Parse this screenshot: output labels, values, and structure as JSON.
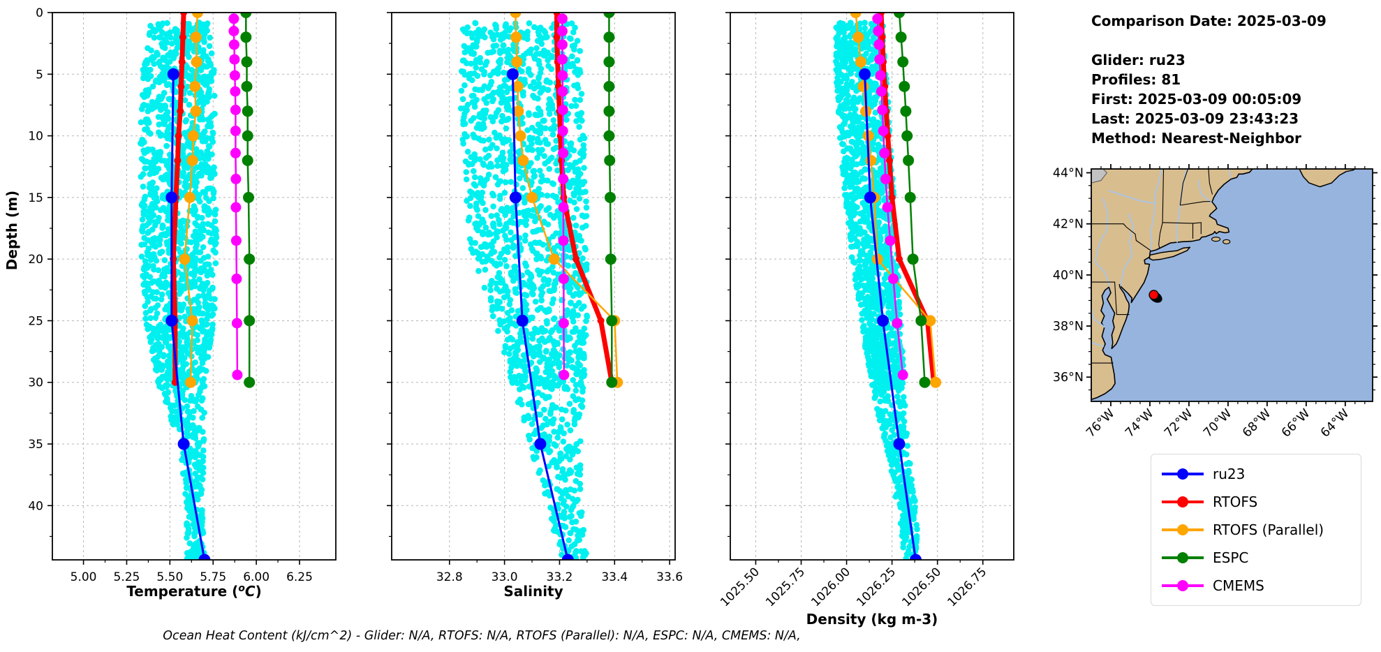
{
  "info_panel": {
    "comparison_date": "Comparison Date: 2025-03-09",
    "details": [
      "Glider: ru23",
      "Profiles: 81",
      "First: 2025-03-09 00:05:09",
      "Last: 2025-03-09 23:43:23",
      "Method: Nearest-Neighbor"
    ]
  },
  "footer_note": "Ocean Heat Content (kJ/cm^2) - Glider: N/A,  RTOFS: N/A,  RTOFS (Parallel): N/A,  ESPC: N/A,  CMEMS: N/A,",
  "legend": [
    {
      "label": "ru23",
      "color": "#0000ff"
    },
    {
      "label": "RTOFS",
      "color": "#ff0000"
    },
    {
      "label": "RTOFS (Parallel)",
      "color": "#ffa500"
    },
    {
      "label": "ESPC",
      "color": "#008000"
    },
    {
      "label": "CMEMS",
      "color": "#ff00ff"
    }
  ],
  "colors": {
    "glider_scatter": "#00f0f0",
    "ru23": "#0000ff",
    "rtofs": "#ff0000",
    "rtofs_parallel": "#ffa500",
    "espc": "#008000",
    "cmems": "#ff00ff",
    "grid": "#b5b5b5"
  },
  "map": {
    "lat_ticks": [
      44,
      42,
      40,
      38,
      36
    ],
    "lat_tick_labels": [
      "44°N",
      "42°N",
      "40°N",
      "38°N",
      "36°N"
    ],
    "lon_ticks": [
      -76,
      -74,
      -72,
      -70,
      -68,
      -66,
      -64
    ],
    "lon_tick_labels": [
      "76°W",
      "74°W",
      "72°W",
      "70°W",
      "68°W",
      "66°W",
      "64°W"
    ],
    "extent": {
      "lon_min": -77.0,
      "lon_max": -62.6,
      "lat_min": 35.05,
      "lat_max": 44.15
    },
    "land_color": "#d8bd8f",
    "ocean_color": "#96b4de",
    "lake_color": "#c2c2c2",
    "river_color": "#a9c6e8",
    "glider_marker": {
      "lon": -73.8,
      "lat": 39.22,
      "color": "#ff0000"
    },
    "track_blob": {
      "lon": -73.7,
      "lat": 39.13
    }
  },
  "chart_data": [
    {
      "id": "temperature",
      "type": "scatter",
      "xlabel": "Temperature (°C)",
      "xlabel_parts": [
        "Temperature (",
        "o",
        "C",
        ")"
      ],
      "ylabel": "Depth (m)",
      "xlim": [
        4.82,
        6.46
      ],
      "ylim": [
        0,
        44.4
      ],
      "xticks": [
        5.0,
        5.25,
        5.5,
        5.75,
        6.0,
        6.25
      ],
      "xtick_labels": [
        "5.00",
        "5.25",
        "5.50",
        "5.75",
        "6.00",
        "6.25"
      ],
      "rotate_xticks": false,
      "yticks": [
        0,
        5,
        10,
        15,
        20,
        25,
        30,
        35,
        40
      ],
      "ytick_labels": [
        "0",
        "5",
        "10",
        "15",
        "20",
        "25",
        "30",
        "35",
        "40"
      ],
      "show_ytick_labels": true,
      "grid": true,
      "scatter": {
        "name": "glider-raw-points",
        "envelope": [
          [
            0.8,
            5.38,
            5.74
          ],
          [
            5,
            5.34,
            5.76
          ],
          [
            10,
            5.33,
            5.76
          ],
          [
            15,
            5.33,
            5.77
          ],
          [
            20,
            5.33,
            5.77
          ],
          [
            25,
            5.36,
            5.76
          ],
          [
            28,
            5.4,
            5.72
          ],
          [
            31,
            5.45,
            5.7
          ],
          [
            35,
            5.56,
            5.7
          ],
          [
            40,
            5.59,
            5.69
          ],
          [
            44.4,
            5.6,
            5.7
          ]
        ]
      },
      "series": [
        {
          "name": "RTOFS",
          "color": "#ff0000",
          "lw": 7,
          "ms": 5,
          "depths": [
            0,
            2,
            4,
            6,
            8,
            10,
            12,
            15,
            20,
            25,
            30
          ],
          "values": [
            5.58,
            5.575,
            5.57,
            5.565,
            5.56,
            5.55,
            5.545,
            5.535,
            5.52,
            5.53,
            5.53
          ]
        },
        {
          "name": "RTOFS (Parallel)",
          "color": "#ffa500",
          "lw": 2.5,
          "ms": 8,
          "depths": [
            0,
            2,
            4,
            6,
            8,
            10,
            12,
            15,
            20,
            25,
            30
          ],
          "values": [
            5.66,
            5.65,
            5.655,
            5.645,
            5.65,
            5.635,
            5.63,
            5.615,
            5.585,
            5.63,
            5.62
          ]
        },
        {
          "name": "ESPC",
          "color": "#008000",
          "lw": 2.5,
          "ms": 8,
          "depths": [
            0,
            2,
            4,
            6,
            8,
            10,
            12,
            15,
            20,
            25,
            30
          ],
          "values": [
            5.94,
            5.94,
            5.945,
            5.945,
            5.95,
            5.95,
            5.95,
            5.955,
            5.96,
            5.96,
            5.96
          ]
        },
        {
          "name": "CMEMS",
          "color": "#ff00ff",
          "lw": 2.5,
          "ms": 7.5,
          "depths": [
            0.5,
            1.5,
            2.6,
            3.8,
            5.1,
            6.4,
            7.9,
            9.6,
            11.4,
            13.5,
            15.8,
            18.5,
            21.6,
            25.2,
            29.4
          ],
          "values": [
            5.87,
            5.87,
            5.872,
            5.874,
            5.876,
            5.878,
            5.88,
            5.88,
            5.88,
            5.882,
            5.882,
            5.884,
            5.886,
            5.888,
            5.89
          ]
        },
        {
          "name": "ru23",
          "color": "#0000ff",
          "lw": 3,
          "ms": 8.5,
          "depths": [
            5,
            15,
            25,
            35,
            44.4
          ],
          "values": [
            5.52,
            5.51,
            5.51,
            5.58,
            5.7
          ]
        }
      ]
    },
    {
      "id": "salinity",
      "type": "scatter",
      "xlabel": "Salinity",
      "xlabel_parts": null,
      "ylabel": null,
      "xlim": [
        32.59,
        33.62
      ],
      "ylim": [
        0,
        44.4
      ],
      "xticks": [
        32.8,
        33.0,
        33.2,
        33.4,
        33.6
      ],
      "xtick_labels": [
        "32.8",
        "33.0",
        "33.2",
        "33.4",
        "33.6"
      ],
      "rotate_xticks": false,
      "yticks": [
        0,
        5,
        10,
        15,
        20,
        25,
        30,
        35,
        40
      ],
      "ytick_labels": [],
      "show_ytick_labels": false,
      "grid": true,
      "scatter": {
        "name": "glider-raw-points",
        "envelope": [
          [
            0.8,
            32.85,
            33.27
          ],
          [
            5,
            32.84,
            33.28
          ],
          [
            10,
            32.84,
            33.29
          ],
          [
            15,
            32.86,
            33.3
          ],
          [
            20,
            32.88,
            33.3
          ],
          [
            25,
            32.96,
            33.3
          ],
          [
            28,
            33.0,
            33.29
          ],
          [
            31,
            33.04,
            33.29
          ],
          [
            35,
            33.09,
            33.28
          ],
          [
            40,
            33.16,
            33.28
          ],
          [
            44.4,
            33.2,
            33.3
          ]
        ]
      },
      "series": [
        {
          "name": "RTOFS",
          "color": "#ff0000",
          "lw": 7,
          "ms": 5,
          "depths": [
            0,
            2,
            4,
            6,
            8,
            10,
            12,
            15,
            20,
            25,
            30
          ],
          "values": [
            33.19,
            33.19,
            33.193,
            33.196,
            33.2,
            33.203,
            33.207,
            33.215,
            33.26,
            33.35,
            33.39
          ]
        },
        {
          "name": "RTOFS (Parallel)",
          "color": "#ffa500",
          "lw": 2.5,
          "ms": 8,
          "depths": [
            0,
            2,
            4,
            6,
            8,
            10,
            12,
            15,
            20,
            25,
            30
          ],
          "values": [
            33.04,
            33.042,
            33.045,
            33.048,
            33.05,
            33.058,
            33.068,
            33.1,
            33.18,
            33.4,
            33.41
          ]
        },
        {
          "name": "ESPC",
          "color": "#008000",
          "lw": 2.5,
          "ms": 8,
          "depths": [
            0,
            2,
            4,
            6,
            8,
            10,
            12,
            15,
            20,
            25,
            30
          ],
          "values": [
            33.38,
            33.38,
            33.38,
            33.38,
            33.38,
            33.38,
            33.382,
            33.384,
            33.386,
            33.39,
            33.39
          ]
        },
        {
          "name": "CMEMS",
          "color": "#ff00ff",
          "lw": 2.5,
          "ms": 7.5,
          "depths": [
            0.5,
            1.5,
            2.6,
            3.8,
            5.1,
            6.4,
            7.9,
            9.6,
            11.4,
            13.5,
            15.8,
            18.5,
            21.6,
            25.2,
            29.4
          ],
          "values": [
            33.21,
            33.21,
            33.21,
            33.21,
            33.211,
            33.211,
            33.212,
            33.212,
            33.213,
            33.213,
            33.214,
            33.214,
            33.215,
            33.215,
            33.216
          ]
        },
        {
          "name": "ru23",
          "color": "#0000ff",
          "lw": 3,
          "ms": 8.5,
          "depths": [
            5,
            15,
            25,
            35,
            44.4
          ],
          "values": [
            33.03,
            33.04,
            33.065,
            33.13,
            33.23
          ]
        }
      ]
    },
    {
      "id": "density",
      "type": "scatter",
      "xlabel": "Density (kg m-3)",
      "xlabel_parts": null,
      "ylabel": null,
      "xlim": [
        1025.36,
        1026.92
      ],
      "ylim": [
        0,
        44.4
      ],
      "xticks": [
        1025.5,
        1025.75,
        1026.0,
        1026.25,
        1026.5,
        1026.75
      ],
      "xtick_labels": [
        "1025.50",
        "1025.75",
        "1026.00",
        "1026.25",
        "1026.50",
        "1026.75"
      ],
      "rotate_xticks": true,
      "yticks": [
        0,
        5,
        10,
        15,
        20,
        25,
        30,
        35,
        40
      ],
      "ytick_labels": [],
      "show_ytick_labels": false,
      "grid": true,
      "scatter": {
        "name": "glider-raw-points",
        "envelope": [
          [
            0.8,
            1025.94,
            1026.2
          ],
          [
            5,
            1025.94,
            1026.22
          ],
          [
            10,
            1025.96,
            1026.24
          ],
          [
            15,
            1025.99,
            1026.26
          ],
          [
            20,
            1026.03,
            1026.28
          ],
          [
            25,
            1026.08,
            1026.3
          ],
          [
            28,
            1026.11,
            1026.31
          ],
          [
            31,
            1026.15,
            1026.32
          ],
          [
            35,
            1026.21,
            1026.34
          ],
          [
            40,
            1026.28,
            1026.38
          ],
          [
            44.4,
            1026.32,
            1026.4
          ]
        ]
      },
      "series": [
        {
          "name": "RTOFS",
          "color": "#ff0000",
          "lw": 7,
          "ms": 5,
          "depths": [
            0,
            2,
            4,
            6,
            8,
            10,
            12,
            15,
            20,
            25,
            30
          ],
          "values": [
            1026.19,
            1026.196,
            1026.202,
            1026.21,
            1026.218,
            1026.227,
            1026.236,
            1026.25,
            1026.29,
            1026.445,
            1026.48
          ]
        },
        {
          "name": "RTOFS (Parallel)",
          "color": "#ffa500",
          "lw": 2.5,
          "ms": 8,
          "depths": [
            0,
            2,
            4,
            6,
            8,
            10,
            12,
            15,
            20,
            25,
            30
          ],
          "values": [
            1026.05,
            1026.064,
            1026.078,
            1026.092,
            1026.106,
            1026.12,
            1026.134,
            1026.152,
            1026.17,
            1026.46,
            1026.49
          ]
        },
        {
          "name": "ESPC",
          "color": "#008000",
          "lw": 2.5,
          "ms": 8,
          "depths": [
            0,
            2,
            4,
            6,
            8,
            10,
            12,
            15,
            20,
            25,
            30
          ],
          "values": [
            1026.29,
            1026.3,
            1026.31,
            1026.318,
            1026.326,
            1026.333,
            1026.34,
            1026.35,
            1026.365,
            1026.41,
            1026.43
          ]
        },
        {
          "name": "CMEMS",
          "color": "#ff00ff",
          "lw": 2.5,
          "ms": 7.5,
          "depths": [
            0.5,
            1.5,
            2.6,
            3.8,
            5.1,
            6.4,
            7.9,
            9.6,
            11.4,
            13.5,
            15.8,
            18.5,
            21.6,
            25.2,
            29.4
          ],
          "values": [
            1026.17,
            1026.174,
            1026.178,
            1026.182,
            1026.187,
            1026.192,
            1026.197,
            1026.202,
            1026.208,
            1026.215,
            1026.225,
            1026.24,
            1026.257,
            1026.278,
            1026.31
          ]
        },
        {
          "name": "ru23",
          "color": "#0000ff",
          "lw": 3,
          "ms": 8.5,
          "depths": [
            5,
            15,
            25,
            35,
            44.4
          ],
          "values": [
            1026.1,
            1026.13,
            1026.2,
            1026.29,
            1026.38
          ]
        }
      ]
    }
  ]
}
